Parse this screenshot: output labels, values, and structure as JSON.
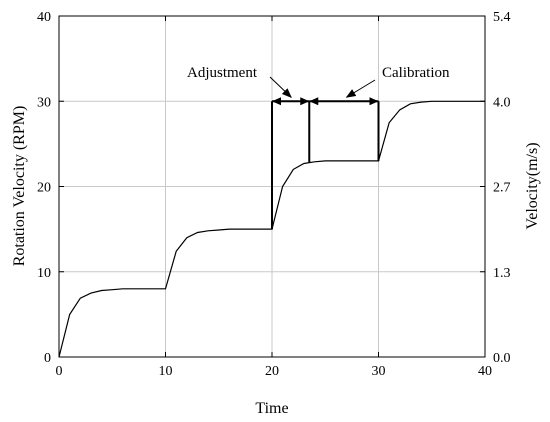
{
  "chart_data": {
    "type": "line",
    "xlabel": "Time",
    "ylabel_left": "Rotation Velocity (RPM)",
    "ylabel_right": "Velocity(m/s)",
    "xlim": [
      0,
      40
    ],
    "ylim_left": [
      0,
      40
    ],
    "ylim_right": [
      0,
      5.4
    ],
    "x_ticks": [
      "0",
      "10",
      "20",
      "30",
      "40"
    ],
    "y_left_ticks": [
      "0",
      "10",
      "20",
      "30",
      "40"
    ],
    "y_right_ticks": [
      "0.0",
      "1.3",
      "2.7",
      "4.0",
      "5.4"
    ],
    "grid": true,
    "grid_x": [
      10,
      20,
      30
    ],
    "series": [
      {
        "x": [
          0,
          1,
          2,
          3,
          4,
          5,
          6,
          7,
          8,
          9,
          10,
          11,
          12,
          13,
          14,
          15,
          16,
          17,
          18,
          19,
          20,
          21,
          22,
          23,
          24,
          25,
          26,
          27,
          28,
          29,
          30,
          31,
          32,
          33,
          34,
          35,
          36,
          37,
          38,
          39,
          40
        ],
        "y": [
          0,
          5.0,
          6.9,
          7.5,
          7.8,
          7.9,
          8.0,
          8.0,
          8.0,
          8.0,
          8.0,
          12.4,
          14.0,
          14.6,
          14.8,
          14.9,
          15.0,
          15.0,
          15.0,
          15.0,
          15.0,
          20.0,
          22.0,
          22.7,
          22.9,
          23.0,
          23.0,
          23.0,
          23.0,
          23.0,
          23.0,
          27.5,
          29.0,
          29.7,
          29.9,
          30.0,
          30.0,
          30.0,
          30.0,
          30.0,
          30.0
        ]
      }
    ],
    "markers": {
      "vertical_lines": [
        {
          "x": 20,
          "y_from": 15,
          "y_to": 30
        },
        {
          "x": 23.5,
          "y_from": 22.8,
          "y_to": 30
        },
        {
          "x": 30,
          "y_from": 23,
          "y_to": 30
        }
      ],
      "intervals": [
        {
          "from": 20,
          "to": 23.5,
          "y": 30
        },
        {
          "from": 23.5,
          "to": 30,
          "y": 30
        }
      ]
    },
    "annotations": [
      {
        "text": "Adjustment",
        "arrow_to_x": 21.8,
        "arrow_to_y": 30
      },
      {
        "text": "Calibration",
        "arrow_to_x": 27,
        "arrow_to_y": 30
      }
    ]
  }
}
